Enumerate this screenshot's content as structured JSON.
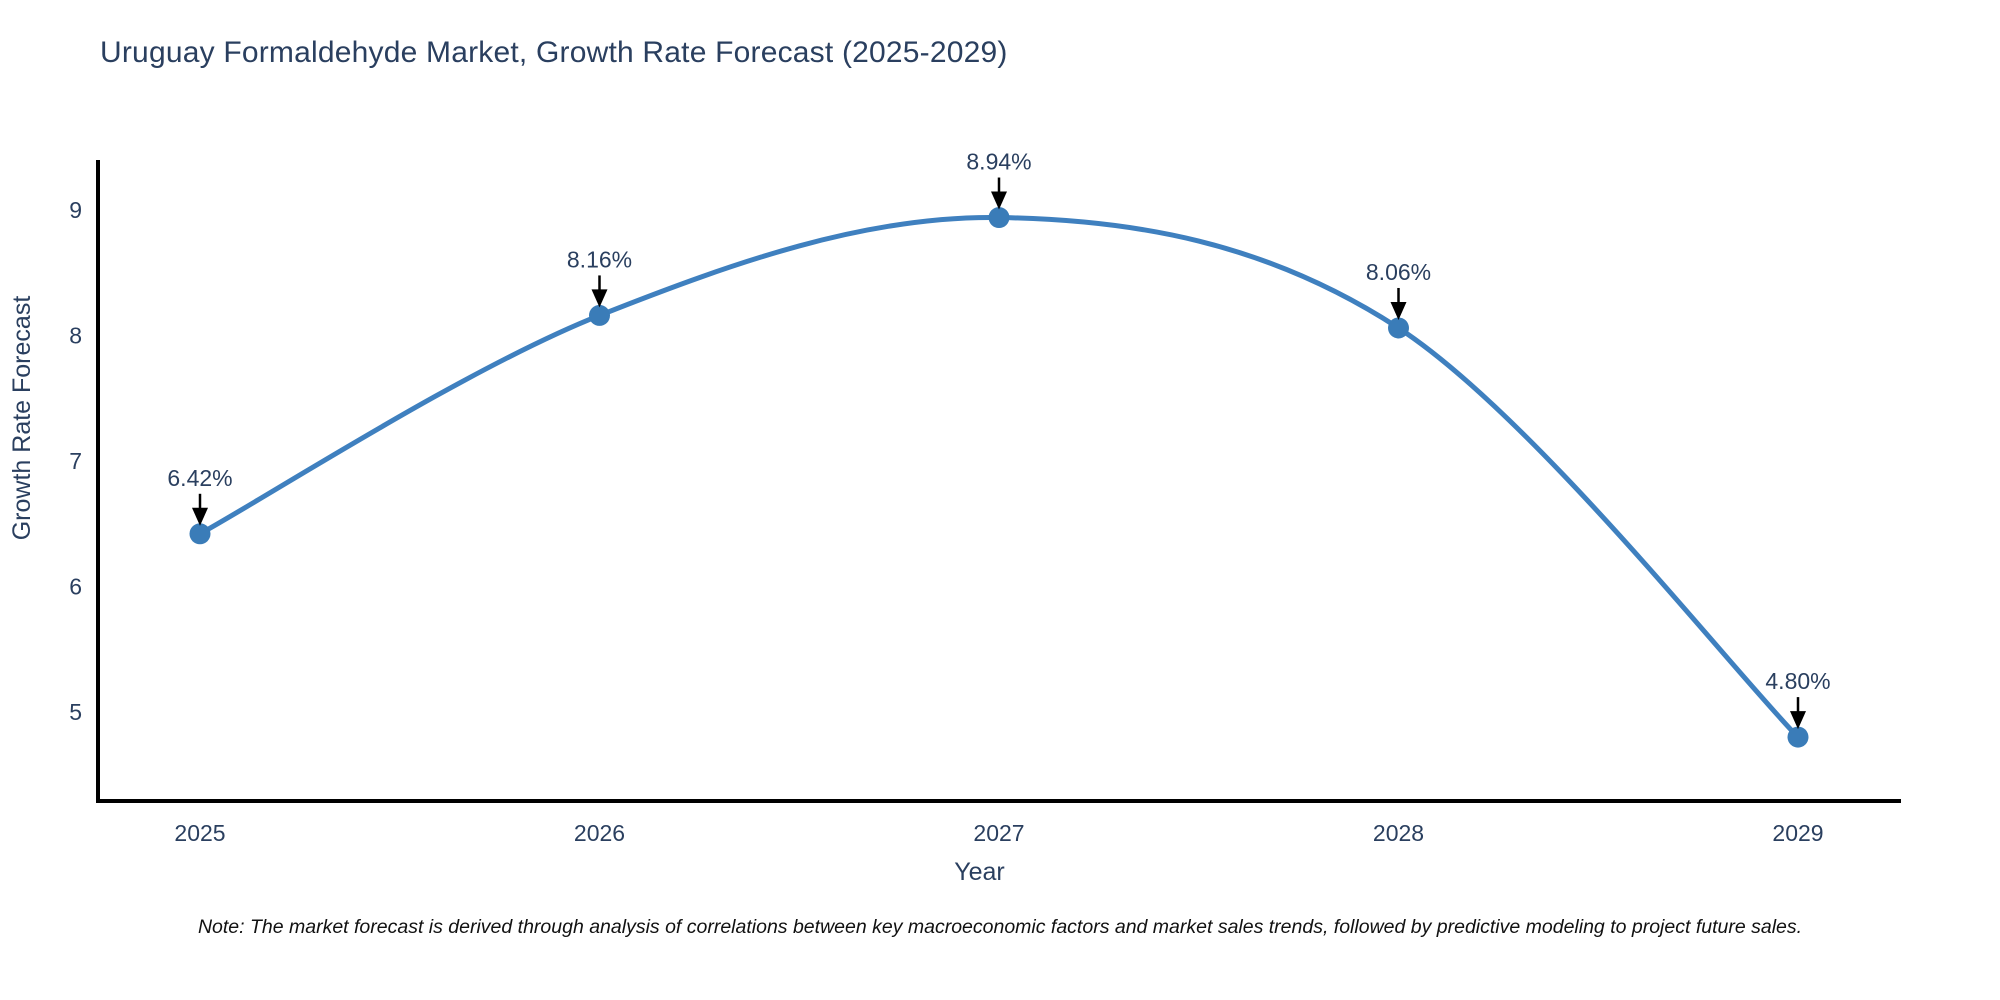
{
  "chart_data": {
    "type": "line",
    "title": "Uruguay Formaldehyde Market, Growth Rate Forecast (2025-2029)",
    "xlabel": "Year",
    "ylabel": "Growth Rate Forecast",
    "x": [
      2025,
      2026,
      2027,
      2028,
      2029
    ],
    "values": [
      6.42,
      8.16,
      8.94,
      8.06,
      4.8
    ],
    "point_labels": [
      "6.42%",
      "8.16%",
      "8.94%",
      "8.06%",
      "4.80%"
    ],
    "yticks": [
      5,
      6,
      7,
      8,
      9
    ],
    "ylim": [
      4.3,
      9.4
    ],
    "grid": false,
    "legend": "none",
    "line_color": "#3f80bf",
    "marker_color": "#3a7cb8",
    "axis_color": "#000000",
    "text_color": "#2a3f5f",
    "annotation_arrow_color": "#000000"
  },
  "note": "Note: The market forecast is derived through analysis of correlations between key macroeconomic factors and market sales trends, followed by predictive modeling to project future sales."
}
